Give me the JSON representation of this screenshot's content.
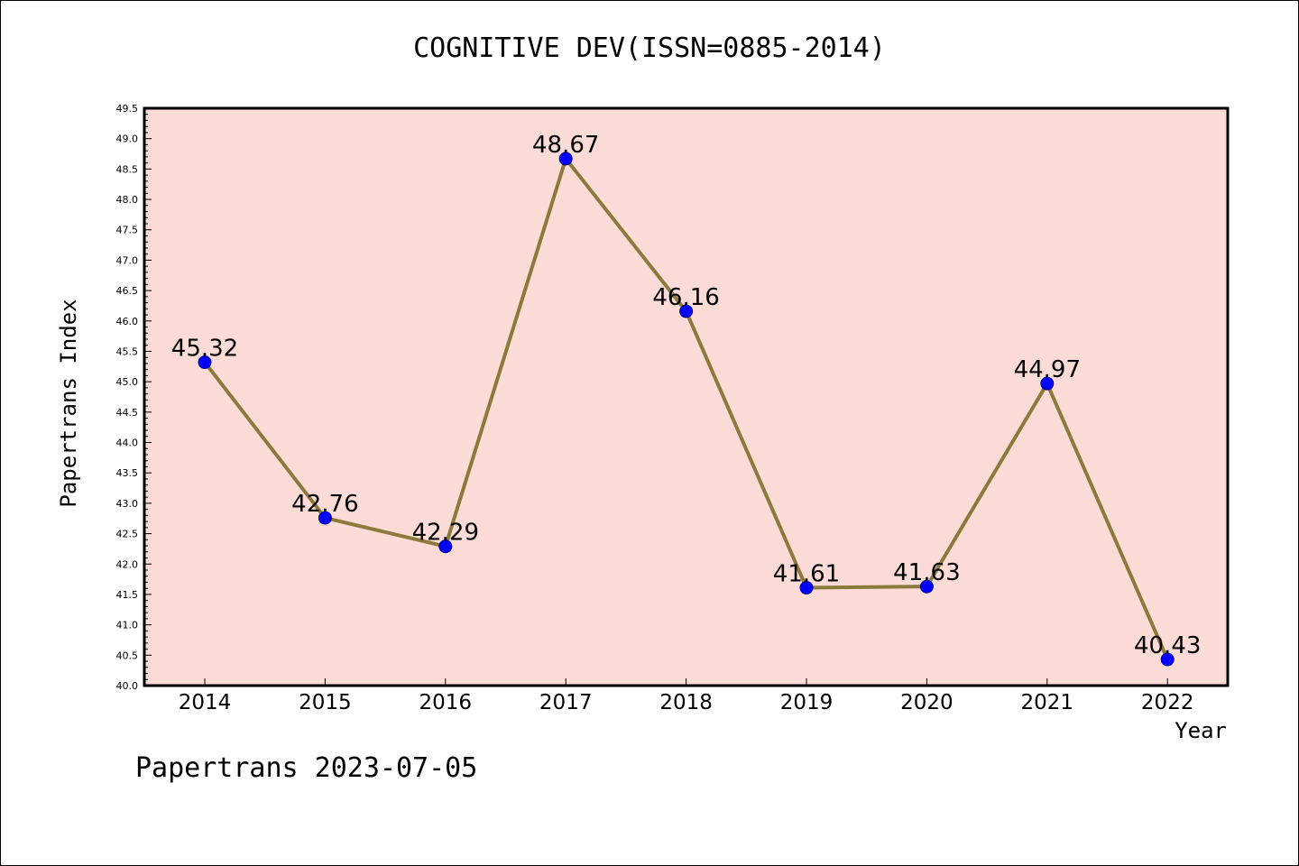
{
  "chart_data": {
    "type": "line",
    "title": "COGNITIVE DEV(ISSN=0885-2014)",
    "xlabel": "Year",
    "ylabel": "Papertrans Index",
    "categories": [
      "2014",
      "2015",
      "2016",
      "2017",
      "2018",
      "2019",
      "2020",
      "2021",
      "2022"
    ],
    "values": [
      45.32,
      42.76,
      42.29,
      48.67,
      46.16,
      41.61,
      41.63,
      44.97,
      40.43
    ],
    "data_labels": [
      "45.32",
      "42.76",
      "42.29",
      "48.67",
      "46.16",
      "41.61",
      "41.63",
      "44.97",
      "40.43"
    ],
    "ylim": [
      40.0,
      49.5
    ],
    "yticks": [
      "40.0",
      "40.5",
      "41.0",
      "41.5",
      "42.0",
      "42.5",
      "43.0",
      "43.5",
      "44.0",
      "44.5",
      "45.0",
      "45.5",
      "46.0",
      "46.5",
      "47.0",
      "47.5",
      "48.0",
      "48.5",
      "49.0",
      "49.5"
    ],
    "grid": false,
    "colors": {
      "plot_background": "#fddcd8",
      "line": "#8b7a3c",
      "marker": "#0000ff"
    }
  },
  "footer": "Papertrans 2023-07-05"
}
